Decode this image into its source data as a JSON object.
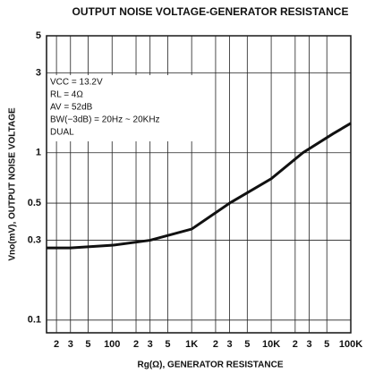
{
  "chart_data": {
    "type": "line",
    "title": "OUTPUT NOISE VOLTAGE-GENERATOR RESISTANCE",
    "x_label": "Rg(Ω), GENERATOR RESISTANCE",
    "y_label": "Vno(mV), OUTPUT NOISE VOLTAGE",
    "annotations": [
      "VCC = 13.2V",
      "RL = 4Ω",
      "AV = 52dB",
      "BW(−3dB) = 20Hz ~ 20KHz",
      "DUAL"
    ],
    "x_scale": "log",
    "y_scale": "log",
    "grid": true,
    "xlim": [
      15,
      100000
    ],
    "ylim": [
      0.084,
      5
    ],
    "xticks": [
      {
        "value": 20,
        "label": "2"
      },
      {
        "value": 30,
        "label": "3"
      },
      {
        "value": 50,
        "label": "5"
      },
      100,
      {
        "value": 200,
        "label": "2"
      },
      {
        "value": 300,
        "label": "3"
      },
      {
        "value": 500,
        "label": "5"
      },
      {
        "value": 1000,
        "label": "1K"
      },
      {
        "value": 2000,
        "label": "2"
      },
      {
        "value": 3000,
        "label": "3"
      },
      {
        "value": 5000,
        "label": "5"
      },
      {
        "value": 10000,
        "label": "10K"
      },
      {
        "value": 20000,
        "label": "2"
      },
      {
        "value": 30000,
        "label": "3"
      },
      {
        "value": 50000,
        "label": "5"
      },
      {
        "value": 100000,
        "label": "100K"
      }
    ],
    "yticks": [
      0.1,
      0.3,
      0.5,
      1,
      3,
      5
    ],
    "series": [
      {
        "name": "Vno",
        "color": "#111111",
        "x": [
          15,
          30,
          100,
          300,
          1000,
          3000,
          10000,
          25000,
          60000,
          100000
        ],
        "values": [
          0.27,
          0.27,
          0.28,
          0.3,
          0.35,
          0.5,
          0.7,
          1.0,
          1.3,
          1.5
        ]
      }
    ]
  }
}
